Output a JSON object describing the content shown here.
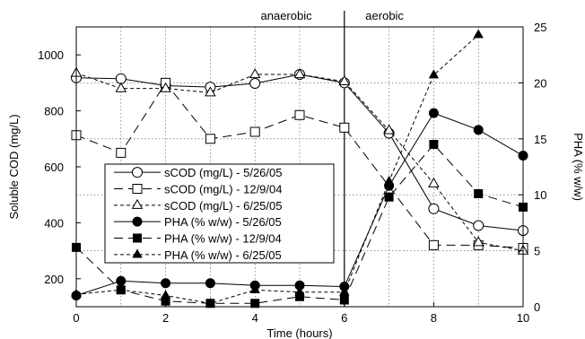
{
  "chart_data": {
    "type": "line",
    "title": "",
    "xlabel": "Time (hours)",
    "ylabel_left": "Soluble COD (mg/L)",
    "ylabel_right": "PHA (% w/w)",
    "xlim": [
      0,
      10
    ],
    "ylim_left": [
      100,
      1100
    ],
    "ylim_right": [
      0,
      25
    ],
    "x_ticks": [
      0,
      2,
      4,
      6,
      8,
      10
    ],
    "y_left_ticks": [
      200,
      400,
      600,
      800,
      1000
    ],
    "y_right_ticks": [
      0,
      5,
      10,
      15,
      20,
      25
    ],
    "grid": true,
    "phase_divider_x": 6,
    "phase_labels": [
      {
        "text": "anaerobic",
        "x": 4.7
      },
      {
        "text": "aerobic",
        "x": 6.9
      }
    ],
    "legend_location": "lower-left",
    "series": [
      {
        "name": "sCOD (mg/L) - 5/26/05",
        "axis": "left",
        "marker": "circle",
        "filled": false,
        "line": "solid",
        "x": [
          0,
          1,
          2,
          3,
          4,
          5,
          6,
          7,
          8,
          9,
          10
        ],
        "values": [
          918,
          915,
          890,
          885,
          898,
          930,
          900,
          720,
          450,
          390,
          372
        ]
      },
      {
        "name": "sCOD (mg/L) - 12/9/04",
        "axis": "left",
        "marker": "square",
        "filled": false,
        "line": "longdash",
        "x": [
          0,
          1,
          2,
          3,
          4,
          5,
          6,
          8,
          9,
          10
        ],
        "values": [
          713,
          650,
          900,
          700,
          725,
          785,
          740,
          320,
          320,
          310
        ]
      },
      {
        "name": "sCOD (mg/L) - 6/25/05",
        "axis": "left",
        "marker": "triangle",
        "filled": false,
        "line": "shortdash",
        "x": [
          0,
          1,
          2,
          3,
          4,
          5,
          6,
          7,
          8,
          9,
          10
        ],
        "values": [
          935,
          880,
          880,
          865,
          930,
          930,
          905,
          730,
          540,
          330,
          300
        ]
      },
      {
        "name": "PHA (% w/w) - 5/26/05",
        "axis": "right",
        "marker": "circle",
        "filled": true,
        "line": "solid",
        "x": [
          0,
          1,
          2,
          3,
          4,
          5,
          6,
          7,
          8,
          9,
          10
        ],
        "values": [
          1.0,
          2.3,
          2.1,
          2.1,
          1.9,
          1.9,
          1.8,
          10.8,
          17.3,
          15.8,
          13.5
        ]
      },
      {
        "name": "PHA (% w/w) - 12/9/04",
        "axis": "right",
        "marker": "square",
        "filled": true,
        "line": "longdash",
        "x": [
          0,
          1,
          2,
          3,
          4,
          5,
          6,
          7,
          8,
          9,
          10
        ],
        "values": [
          5.3,
          1.5,
          0.5,
          0.3,
          0.3,
          0.9,
          0.6,
          9.8,
          14.5,
          10.1,
          8.9
        ]
      },
      {
        "name": "PHA (% w/w) - 6/25/05",
        "axis": "right",
        "marker": "triangle",
        "filled": true,
        "line": "shortdash",
        "x": [
          0,
          1,
          2,
          3,
          4,
          5,
          6,
          7,
          8,
          9
        ],
        "values": [
          1.1,
          1.5,
          1.0,
          0.3,
          1.5,
          1.3,
          1.3,
          11.2,
          20.7,
          24.3
        ]
      }
    ]
  }
}
